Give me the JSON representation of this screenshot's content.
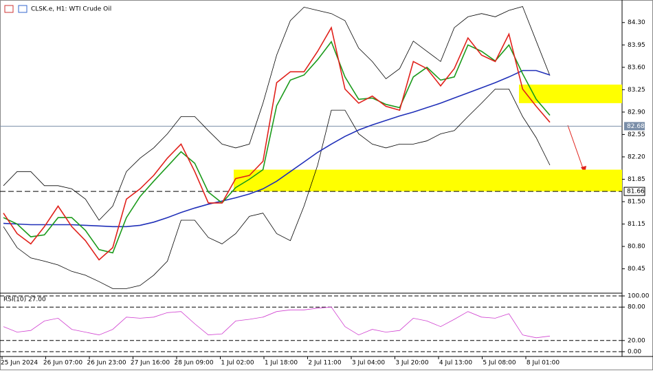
{
  "chart_data": [
    {
      "type": "line",
      "title": "CLSK.e, H1:  WTI Crude Oil",
      "xtick_labels": [
        "25 Jun 2024",
        "26 Jun 07:00",
        "26 Jun 23:00",
        "27 Jun 16:00",
        "28 Jun 09:00",
        "1 Jul 02:00",
        "1 Jul 18:00",
        "2 Jul 11:00",
        "3 Jul 04:00",
        "3 Jul 20:00",
        "4 Jul 13:00",
        "5 Jul 08:00",
        "8 Jul 01:00"
      ],
      "ylim": [
        80.08,
        84.62
      ],
      "yticks": [
        80.45,
        {
          "value": 80.8,
          "label": "80.80"
        },
        81.15,
        {
          "value": 81.5,
          "label": "81.50"
        },
        81.85,
        {
          "value": 82.2,
          "label": "82.20"
        },
        82.55,
        {
          "value": 82.9,
          "label": "82.90"
        },
        83.25,
        {
          "value": 83.6,
          "label": "83.60"
        },
        83.95,
        {
          "value": 84.3,
          "label": "84.30"
        }
      ],
      "price_lines": [
        82.68,
        81.66
      ],
      "zones": [
        [
          81.66,
          82.0
        ],
        [
          83.04,
          83.33
        ]
      ],
      "series": [
        {
          "color": "#000000",
          "values": [
            81.75,
            81.97,
            81.97,
            81.75,
            81.75,
            81.7,
            81.54,
            81.21,
            81.43,
            81.97,
            82.18,
            82.34,
            82.56,
            82.83,
            82.83,
            82.61,
            82.4,
            82.34,
            82.4,
            83.04,
            83.79,
            84.33,
            84.54,
            84.49,
            84.44,
            84.33,
            83.9,
            83.69,
            83.42,
            83.58,
            84.01,
            83.85,
            83.69,
            84.22,
            84.39,
            84.44,
            84.39,
            84.49,
            84.55,
            84.01,
            83.47
          ]
        },
        {
          "color": "#000000",
          "values": [
            81.11,
            80.78,
            80.62,
            80.57,
            80.51,
            80.41,
            80.35,
            80.25,
            80.14,
            80.14,
            80.19,
            80.35,
            80.57,
            81.21,
            81.21,
            80.94,
            80.84,
            81.0,
            81.27,
            81.32,
            81.0,
            80.89,
            81.43,
            82.07,
            82.93,
            82.93,
            82.56,
            82.4,
            82.34,
            82.4,
            82.4,
            82.45,
            82.56,
            82.61,
            82.83,
            83.04,
            83.26,
            83.26,
            82.83,
            82.5,
            82.07
          ]
        },
        {
          "color": "#1f2fb8",
          "values": [
            81.16,
            81.15,
            81.14,
            81.14,
            81.14,
            81.14,
            81.13,
            81.12,
            81.11,
            81.11,
            81.13,
            81.18,
            81.25,
            81.33,
            81.4,
            81.46,
            81.51,
            81.56,
            81.62,
            81.7,
            81.82,
            81.97,
            82.12,
            82.27,
            82.4,
            82.52,
            82.62,
            82.7,
            82.77,
            82.84,
            82.9,
            82.97,
            83.04,
            83.12,
            83.2,
            83.28,
            83.36,
            83.45,
            83.55,
            83.55,
            83.48
          ]
        },
        {
          "color": "#1a9a1a",
          "values": [
            81.25,
            81.15,
            80.95,
            80.98,
            81.25,
            81.25,
            81.05,
            80.75,
            80.7,
            81.25,
            81.58,
            81.82,
            82.05,
            82.28,
            82.1,
            81.65,
            81.48,
            81.72,
            81.85,
            82.0,
            83.0,
            83.4,
            83.48,
            83.72,
            84.0,
            83.45,
            83.1,
            83.12,
            83.02,
            82.97,
            83.45,
            83.6,
            83.4,
            83.45,
            83.95,
            83.85,
            83.7,
            83.95,
            83.5,
            83.1,
            82.85
          ]
        },
        {
          "color": "#e0201a",
          "values": [
            81.32,
            81.0,
            80.84,
            81.11,
            81.43,
            81.11,
            80.89,
            80.59,
            80.78,
            81.54,
            81.7,
            81.91,
            82.18,
            82.4,
            81.97,
            81.48,
            81.48,
            81.86,
            81.91,
            82.13,
            83.36,
            83.53,
            83.53,
            83.85,
            84.22,
            83.26,
            83.04,
            83.15,
            82.99,
            82.93,
            83.69,
            83.58,
            83.31,
            83.58,
            84.06,
            83.79,
            83.69,
            84.12,
            83.26,
            82.99,
            82.74
          ]
        }
      ]
    },
    {
      "type": "line",
      "title": "RSI(10) 27.00",
      "ylim": [
        0,
        100
      ],
      "yticks": [
        {
          "value": 0,
          "label": "0.00"
        },
        {
          "value": 20,
          "label": "20.00"
        },
        {
          "value": 80,
          "label": "80.00"
        },
        {
          "value": 100,
          "label": "100.00"
        }
      ],
      "series": [
        {
          "color": "#d040d0",
          "values": [
            45,
            35,
            38,
            55,
            60,
            40,
            35,
            30,
            40,
            62,
            60,
            62,
            70,
            72,
            50,
            30,
            32,
            55,
            58,
            62,
            72,
            75,
            75,
            78,
            80,
            45,
            30,
            40,
            35,
            38,
            60,
            55,
            45,
            58,
            72,
            62,
            60,
            68,
            30,
            25,
            28
          ]
        }
      ]
    }
  ]
}
